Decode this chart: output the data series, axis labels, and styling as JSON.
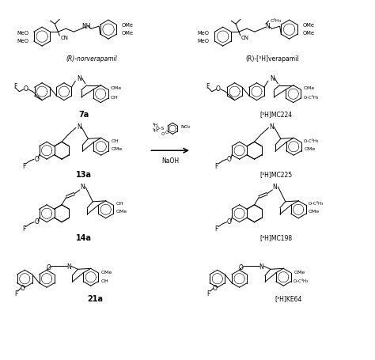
{
  "bg": "#ffffff",
  "figsize": [
    4.74,
    4.56
  ],
  "dpi": 100,
  "compounds": {
    "norverapamil_label": "(R)-norverapamil",
    "verapamil_label": "(R)-[³H]verapamil",
    "c7a_label": "7a",
    "mc224_label": "[³H]MC224",
    "c13a_label": "13a",
    "mc225_label": "[³H]MC225",
    "c14a_label": "14a",
    "mc198_label": "[³H]MC198",
    "c21a_label": "21a",
    "ke64_label": "[³H]KE64",
    "reagent1": "³H",
    "reagent2": "NaOH"
  }
}
